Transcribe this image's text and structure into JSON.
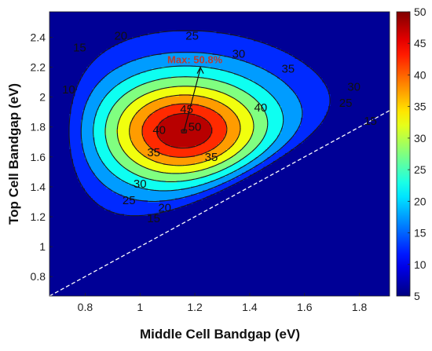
{
  "chart_data": {
    "type": "heatmap",
    "title": "",
    "xlabel": "Middle Cell Bandgap (eV)",
    "ylabel": "Top Cell Bandgap (eV)",
    "xlim": [
      0.67,
      1.91
    ],
    "ylim": [
      0.67,
      2.57
    ],
    "xticks": [
      0.8,
      1,
      1.2,
      1.4,
      1.6,
      1.8
    ],
    "yticks": [
      0.8,
      1,
      1.2,
      1.4,
      1.6,
      1.8,
      2,
      2.2,
      2.4
    ],
    "colorbar": {
      "min": 5,
      "max": 50,
      "ticks": [
        5,
        10,
        15,
        20,
        25,
        30,
        35,
        40,
        45,
        50
      ],
      "colormap": "jet"
    },
    "contour_levels": [
      10,
      15,
      20,
      25,
      30,
      35,
      40,
      45,
      50
    ],
    "contour_labels": [
      {
        "text": "15",
        "x": 0.78,
        "y": 2.33
      },
      {
        "text": "20",
        "x": 0.93,
        "y": 2.41
      },
      {
        "text": "10",
        "x": 0.74,
        "y": 2.05
      },
      {
        "text": "25",
        "x": 1.19,
        "y": 2.41
      },
      {
        "text": "30",
        "x": 1.36,
        "y": 2.29
      },
      {
        "text": "35",
        "x": 1.54,
        "y": 2.19
      },
      {
        "text": "30",
        "x": 1.78,
        "y": 2.07
      },
      {
        "text": "25",
        "x": 1.75,
        "y": 1.96
      },
      {
        "text": "15",
        "x": 1.84,
        "y": 1.84
      },
      {
        "text": "45",
        "x": 1.17,
        "y": 1.92
      },
      {
        "text": "50",
        "x": 1.2,
        "y": 1.8
      },
      {
        "text": "40",
        "x": 1.07,
        "y": 1.78
      },
      {
        "text": "40",
        "x": 1.44,
        "y": 1.93
      },
      {
        "text": "35",
        "x": 1.05,
        "y": 1.63
      },
      {
        "text": "35",
        "x": 1.26,
        "y": 1.6
      },
      {
        "text": "30",
        "x": 1.0,
        "y": 1.42
      },
      {
        "text": "25",
        "x": 0.96,
        "y": 1.31
      },
      {
        "text": "20",
        "x": 1.09,
        "y": 1.26
      },
      {
        "text": "15",
        "x": 1.05,
        "y": 1.19
      }
    ],
    "max_annotation": {
      "text": "Max: 50.8%",
      "x": 1.16,
      "y": 1.77,
      "text_x": 1.22,
      "text_y": 2.22
    },
    "peak": {
      "x": 1.16,
      "y": 1.77,
      "value": 50.8
    },
    "cutoff_line": {
      "x": [
        0.67,
        1.91
      ],
      "y": [
        0.67,
        1.91
      ],
      "style": "dashed",
      "color": "#ffffff"
    },
    "contour_line_color": "#1a1a1a",
    "annotation_color": "#c0392b"
  }
}
